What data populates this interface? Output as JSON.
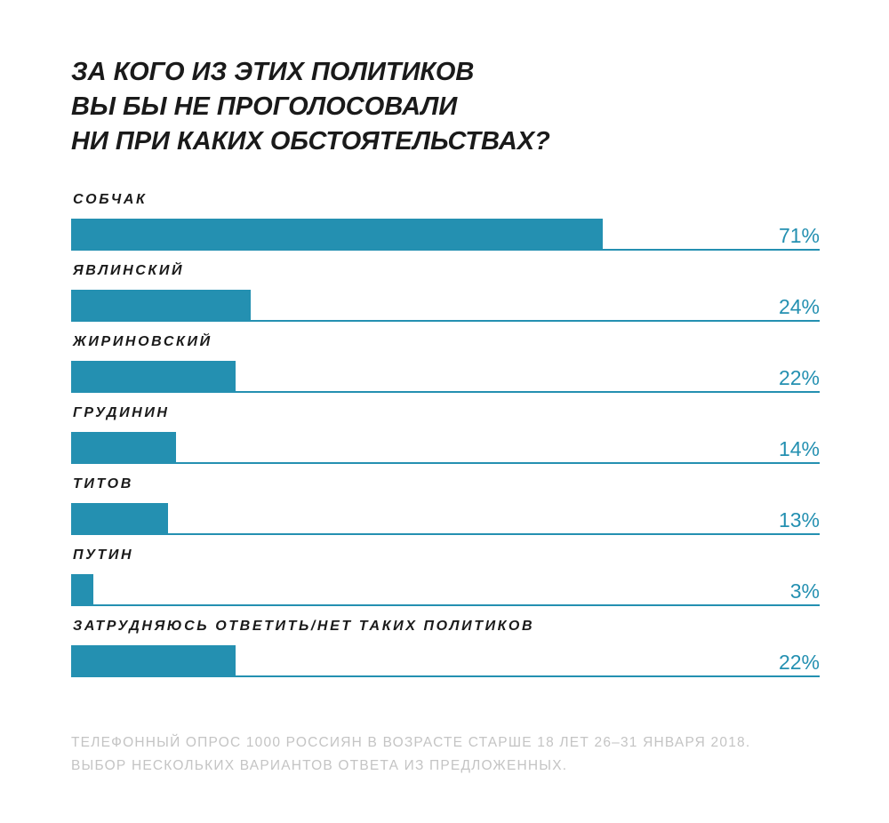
{
  "title": {
    "lines": [
      "ЗА КОГО ИЗ ЭТИХ ПОЛИТИКОВ",
      "ВЫ БЫ НЕ ПРОГОЛОСОВАЛИ",
      "НИ ПРИ КАКИХ ОБСТОЯТЕЛЬСТВАХ?"
    ]
  },
  "colors": {
    "bar": "#2490b1",
    "label": "#1a1a1a",
    "note": "#c4c4c4"
  },
  "chart_data": {
    "type": "bar",
    "orientation": "horizontal",
    "title": "ЗА КОГО ИЗ ЭТИХ ПОЛИТИКОВ ВЫ БЫ НЕ ПРОГОЛОСОВАЛИ НИ ПРИ КАКИХ ОБСТОЯТЕЛЬСТВАХ?",
    "categories": [
      "СОБЧАК",
      "ЯВЛИНСКИЙ",
      "ЖИРИНОВСКИЙ",
      "ГРУДИНИН",
      "ТИТОВ",
      "ПУТИН",
      "ЗАТРУДНЯЮСЬ ОТВЕТИТЬ/НЕТ ТАКИХ ПОЛИТИКОВ"
    ],
    "values": [
      71,
      24,
      22,
      14,
      13,
      3,
      22
    ],
    "value_labels": [
      "71%",
      "24%",
      "22%",
      "14%",
      "13%",
      "3%",
      "22%"
    ],
    "unit": "%",
    "xlim": [
      0,
      100
    ],
    "grid": false,
    "legend": "none"
  },
  "note": {
    "lines": [
      "ТЕЛЕФОННЫЙ ОПРОС 1000 РОССИЯН В ВОЗРАСТЕ СТАРШЕ 18 ЛЕТ 26–31 ЯНВАРЯ 2018.",
      "ВЫБОР НЕСКОЛЬКИХ ВАРИАНТОВ ОТВЕТА ИЗ ПРЕДЛОЖЕННЫХ."
    ]
  }
}
